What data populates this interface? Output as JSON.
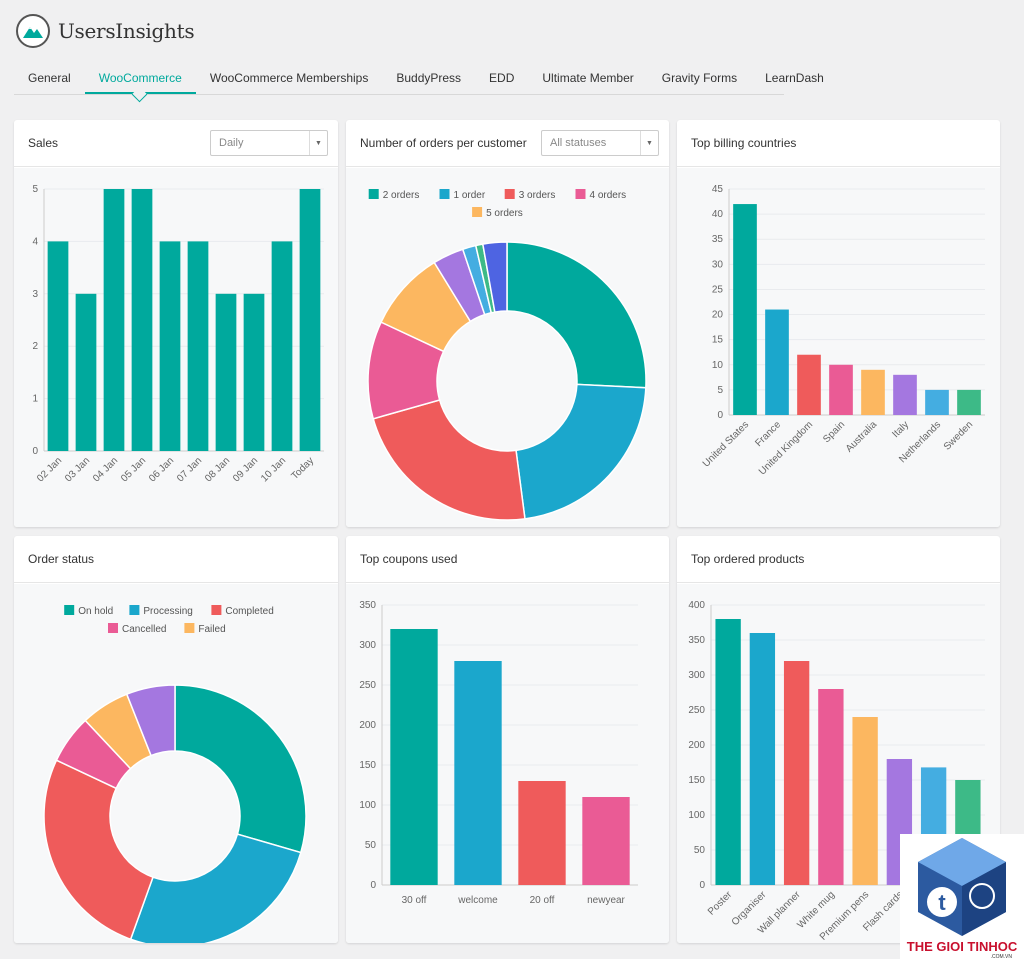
{
  "app": {
    "name": "UsersInsights"
  },
  "tabs": [
    {
      "label": "General"
    },
    {
      "label": "WooCommerce",
      "active": true
    },
    {
      "label": "WooCommerce Memberships"
    },
    {
      "label": "BuddyPress"
    },
    {
      "label": "EDD"
    },
    {
      "label": "Ultimate Member"
    },
    {
      "label": "Gravity Forms"
    },
    {
      "label": "LearnDash"
    }
  ],
  "colors": {
    "accent": "#00a99d",
    "palette": [
      "#00a99d",
      "#1ba7cc",
      "#ef5b5b",
      "#ea5b95",
      "#fcb760",
      "#a477e0",
      "#44ade1",
      "#3dba87",
      "#4e64e2"
    ]
  },
  "cards": {
    "sales": {
      "title": "Sales",
      "select": "Daily"
    },
    "orders_per_customer": {
      "title": "Number of orders per customer",
      "select": "All statuses"
    },
    "billing_countries": {
      "title": "Top billing countries"
    },
    "order_status": {
      "title": "Order status"
    },
    "coupons": {
      "title": "Top coupons used"
    },
    "products": {
      "title": "Top ordered products"
    }
  },
  "watermark": {
    "text": "THE GIOI TINHOC",
    "sub": ".COM.VN"
  },
  "chart_data": [
    {
      "id": "sales",
      "type": "bar",
      "categories": [
        "02 Jan",
        "03 Jan",
        "04 Jan",
        "05 Jan",
        "06 Jan",
        "07 Jan",
        "08 Jan",
        "09 Jan",
        "10 Jan",
        "Today"
      ],
      "values": [
        4,
        3,
        5,
        5,
        4,
        4,
        3,
        3,
        4,
        5
      ],
      "ylim": [
        0,
        5
      ],
      "yticks": [
        0,
        1,
        2,
        3,
        4,
        5
      ],
      "color": "#00a99d",
      "xlabel_rotate": true
    },
    {
      "id": "orders_per_customer",
      "type": "pie",
      "donut": true,
      "legend": [
        "2 orders",
        "1 order",
        "3 orders",
        "4 orders",
        "5 orders"
      ],
      "legend_position": "top",
      "slices": [
        {
          "value": 25.0,
          "color": "#00a99d"
        },
        {
          "value": 21.5,
          "color": "#1ba7cc"
        },
        {
          "value": 22.0,
          "color": "#ef5b5b"
        },
        {
          "value": 11.0,
          "color": "#ea5b95"
        },
        {
          "value": 9.0,
          "color": "#fcb760"
        },
        {
          "value": 3.5,
          "color": "#a477e0"
        },
        {
          "value": 1.5,
          "color": "#44ade1"
        },
        {
          "value": 0.8,
          "color": "#3dba87"
        },
        {
          "value": 2.7,
          "color": "#4e64e2"
        }
      ]
    },
    {
      "id": "billing_countries",
      "type": "bar",
      "categories": [
        "United States",
        "France",
        "United Kingdom",
        "Spain",
        "Australia",
        "Italy",
        "Netherlands",
        "Sweden"
      ],
      "values": [
        42,
        21,
        12,
        10,
        9,
        8,
        5,
        5
      ],
      "ylim": [
        0,
        45
      ],
      "yticks": [
        0,
        5,
        10,
        15,
        20,
        25,
        30,
        35,
        40,
        45
      ],
      "multicolor": true,
      "xlabel_rotate": true
    },
    {
      "id": "order_status",
      "type": "pie",
      "donut": true,
      "legend": [
        "On hold",
        "Processing",
        "Completed",
        "Cancelled",
        "Failed"
      ],
      "legend_position": "top",
      "slices": [
        {
          "value": 29.5,
          "color": "#00a99d"
        },
        {
          "value": 26.0,
          "color": "#1ba7cc"
        },
        {
          "value": 26.5,
          "color": "#ef5b5b"
        },
        {
          "value": 6.0,
          "color": "#ea5b95"
        },
        {
          "value": 6.0,
          "color": "#fcb760"
        },
        {
          "value": 6.0,
          "color": "#a477e0"
        }
      ]
    },
    {
      "id": "coupons",
      "type": "bar",
      "categories": [
        "30 off",
        "welcome",
        "20 off",
        "newyear"
      ],
      "values": [
        320,
        280,
        130,
        110
      ],
      "ylim": [
        0,
        350
      ],
      "yticks": [
        0,
        50,
        100,
        150,
        200,
        250,
        300,
        350
      ],
      "multicolor": true,
      "xlabel_rotate": false
    },
    {
      "id": "products",
      "type": "bar",
      "categories": [
        "Poster",
        "Organiser",
        "Wall planner",
        "White mug",
        "Premium pens",
        "Flash cards",
        "",
        ""
      ],
      "values": [
        380,
        360,
        320,
        280,
        240,
        180,
        168,
        150
      ],
      "ylim": [
        0,
        400
      ],
      "yticks": [
        0,
        50,
        100,
        150,
        200,
        250,
        300,
        350,
        400
      ],
      "multicolor": true,
      "xlabel_rotate": true
    }
  ]
}
